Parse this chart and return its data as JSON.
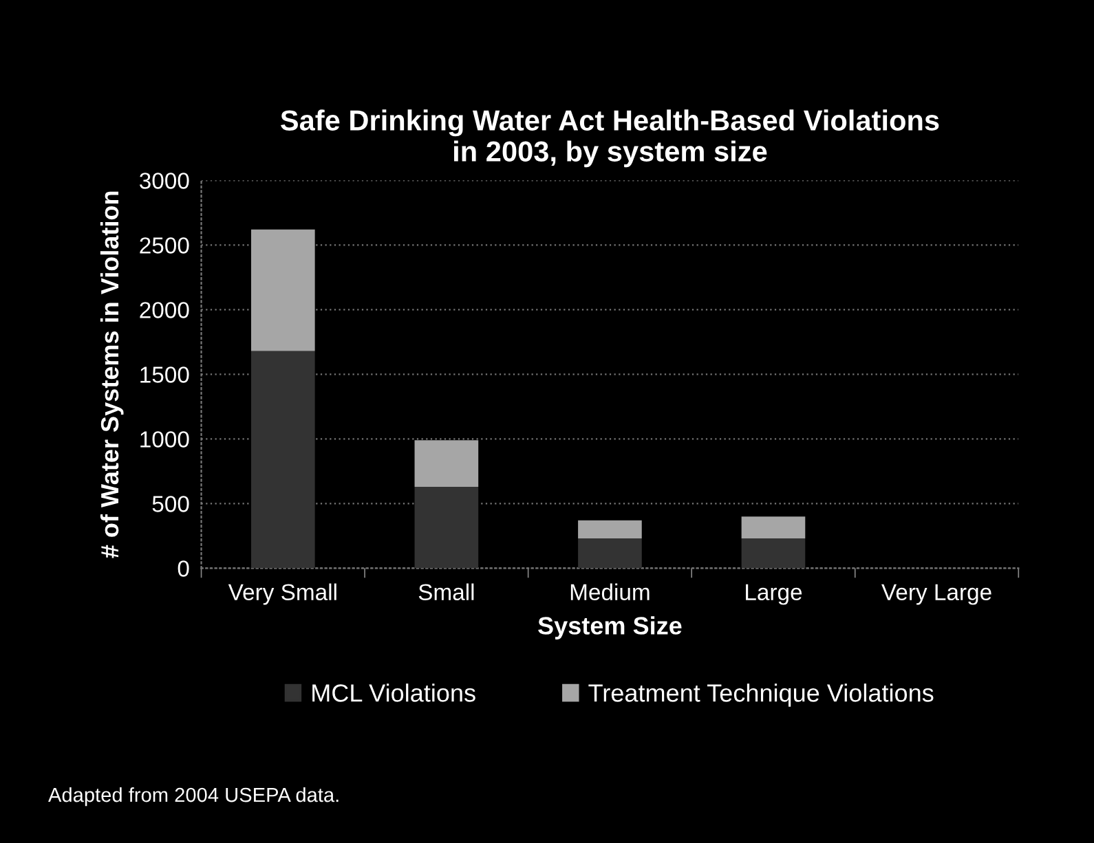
{
  "chart_data": {
    "type": "bar",
    "title": "Safe Drinking Water Act Health-Based Violations\nin 2003, by system size",
    "xlabel": "System Size",
    "ylabel": "# of Water Systems in Violation",
    "categories": [
      "Very Small",
      "Small",
      "Medium",
      "Large",
      "Very Large"
    ],
    "stacked": true,
    "series": [
      {
        "name": "MCL Violations",
        "color": "#333333",
        "values": [
          1680,
          630,
          230,
          230,
          0
        ]
      },
      {
        "name": "Treatment Technique Violations",
        "color": "#a6a6a6",
        "values": [
          940,
          360,
          140,
          170,
          0
        ]
      }
    ],
    "ylim": [
      0,
      3000
    ],
    "yticks": [
      0,
      500,
      1000,
      1500,
      2000,
      2500,
      3000
    ],
    "grid": "y",
    "legend": "bottom",
    "annotations": [
      "Adapted from 2004 USEPA data."
    ]
  }
}
